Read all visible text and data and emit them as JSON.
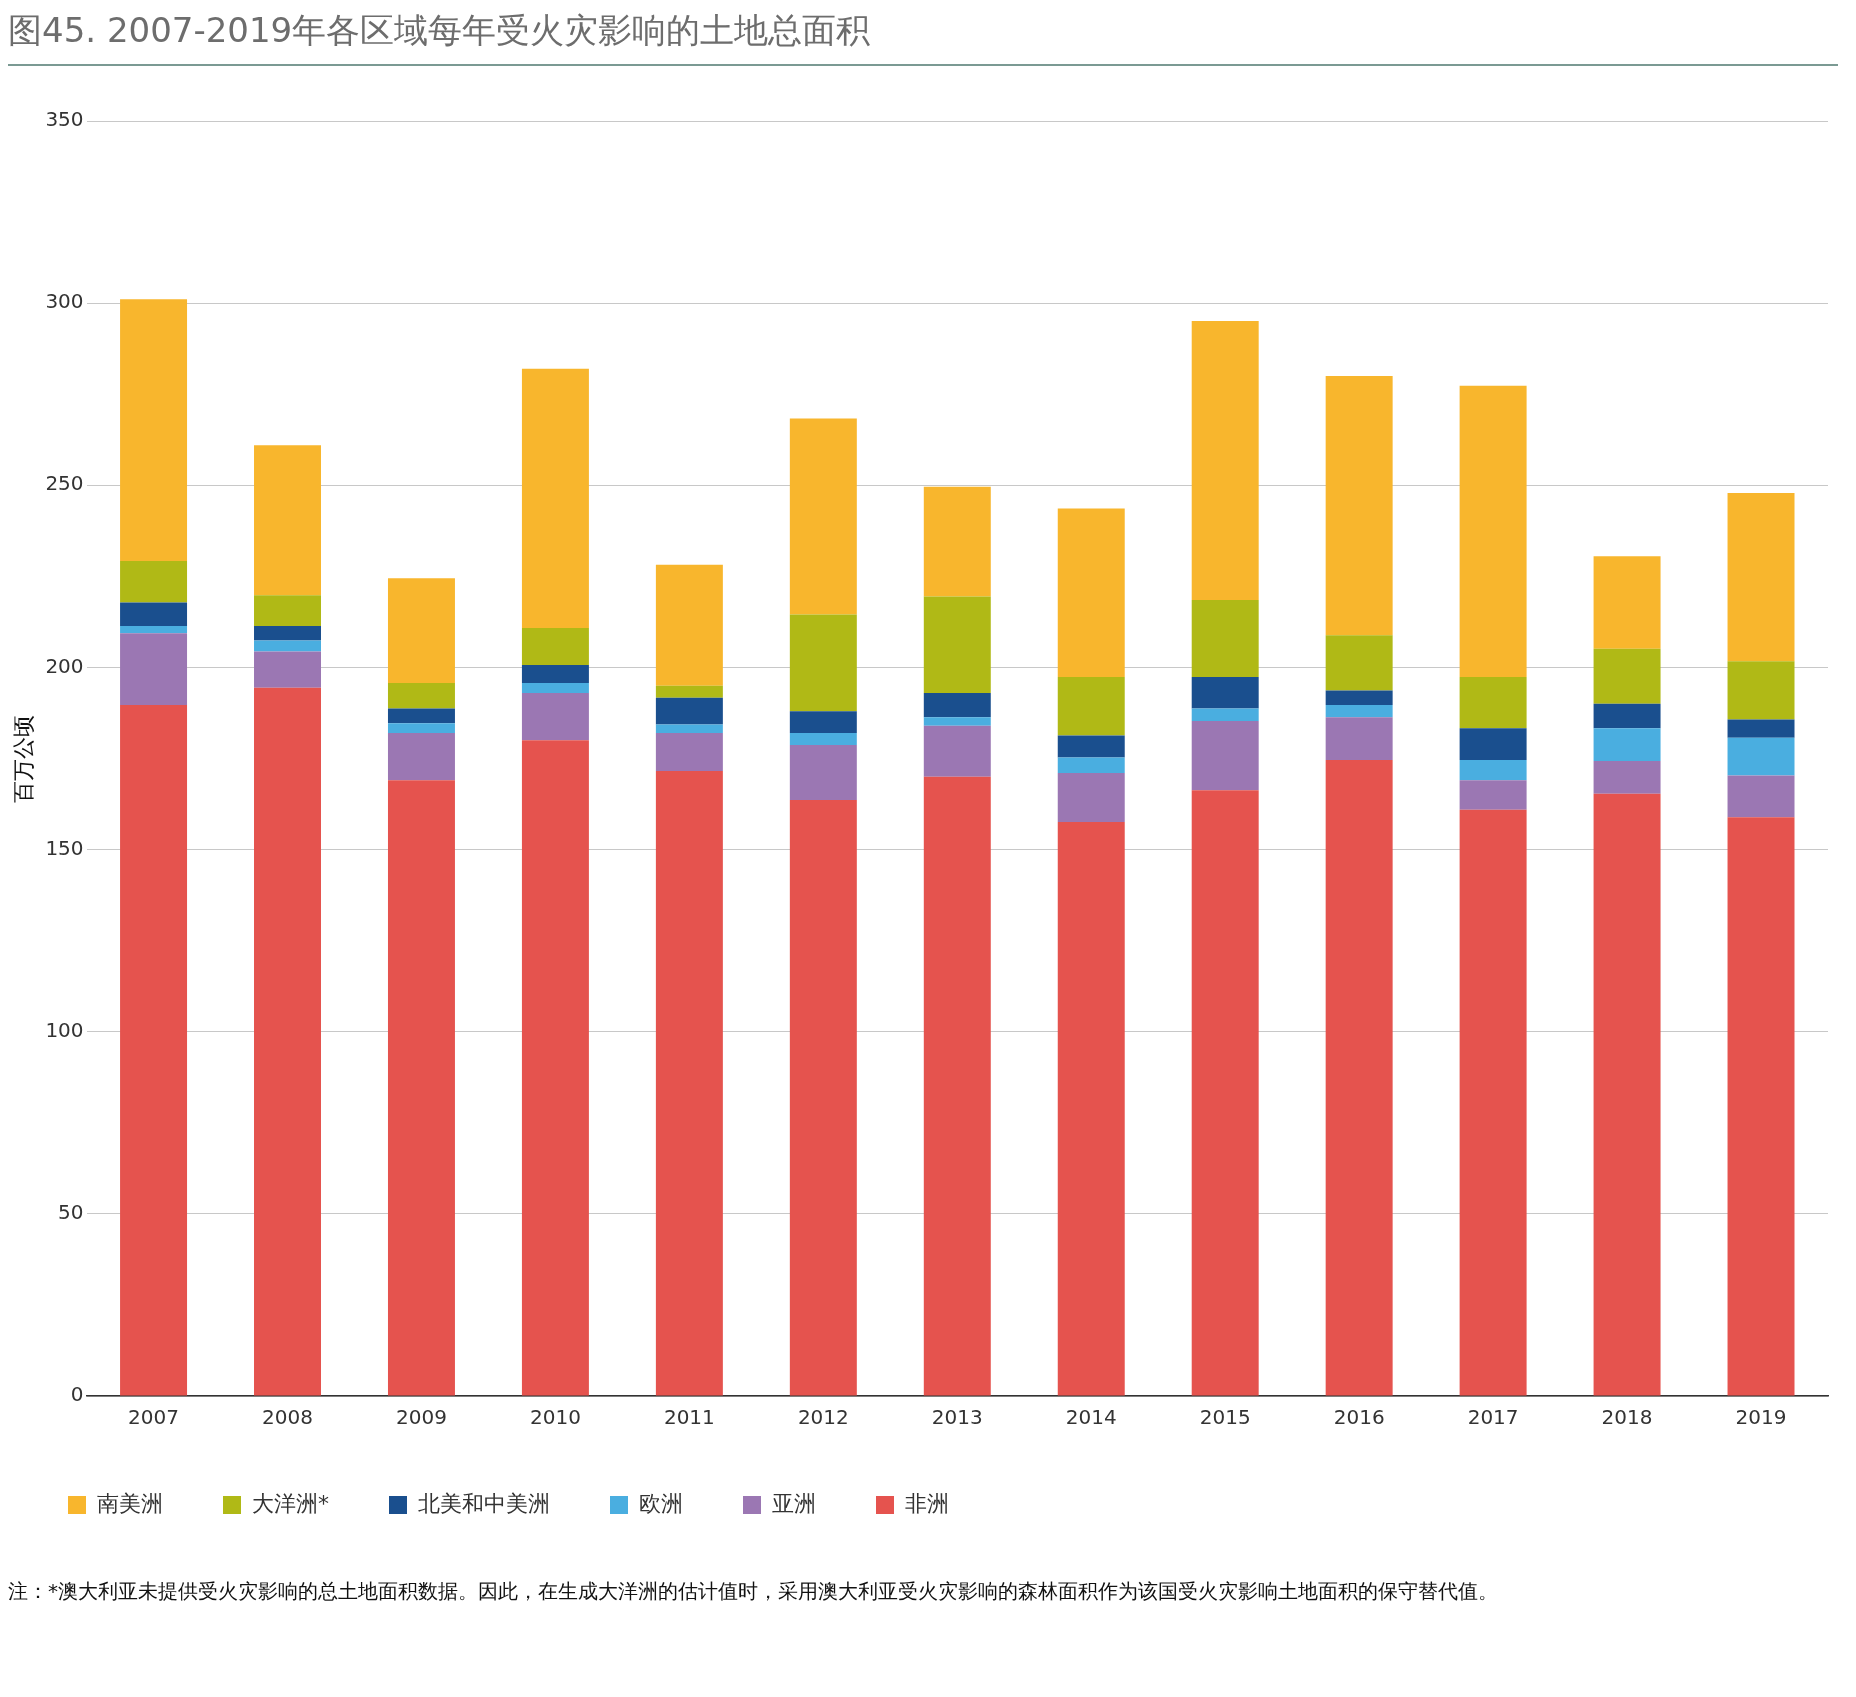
{
  "chart_data": {
    "type": "bar",
    "title": "图45. 2007-2019年各区域每年受火灾影响的土地总面积",
    "ylabel": "百万公顷",
    "categories": [
      "2007",
      "2008",
      "2009",
      "2010",
      "2011",
      "2012",
      "2013",
      "2014",
      "2015",
      "2016",
      "2017",
      "2018",
      "2019"
    ],
    "stacked": true,
    "ylim": [
      0,
      350
    ],
    "yticks": [
      0,
      50,
      100,
      150,
      200,
      250,
      300,
      350
    ],
    "grid": "y",
    "legend": "bottom",
    "series": [
      {
        "name": "非洲",
        "color": "#e5534e",
        "values": [
          189.7,
          194.4,
          169,
          180,
          171.6,
          163.6,
          170,
          157.6,
          166.3,
          174.6,
          160.9,
          165.3,
          158.9
        ]
      },
      {
        "name": "亚洲",
        "color": "#9b77b3",
        "values": [
          19.7,
          10,
          13,
          13,
          10.4,
          15.1,
          14,
          13.4,
          19,
          11.7,
          8.1,
          9,
          11.4
        ]
      },
      {
        "name": "欧洲",
        "color": "#4aaee0",
        "values": [
          2,
          3,
          2.7,
          2.7,
          2.3,
          3.3,
          2.3,
          4.3,
          3.4,
          3.4,
          5.6,
          9,
          10.4
        ]
      },
      {
        "name": "北美和中美洲",
        "color": "#1a4f8e",
        "values": [
          6.4,
          4,
          4,
          5,
          7.4,
          6,
          6.7,
          6,
          8.7,
          4,
          8.7,
          6.7,
          5
        ]
      },
      {
        "name": "大洋洲*",
        "color": "#b0b916",
        "values": [
          11.4,
          8.4,
          7,
          10.1,
          3.3,
          26.5,
          26.5,
          16.1,
          21.1,
          15.1,
          14.1,
          15.1,
          16
        ]
      },
      {
        "name": "南美洲",
        "color": "#f8b62d",
        "values": [
          71.9,
          41.2,
          28.8,
          71.2,
          33.2,
          53.8,
          30.1,
          46.2,
          76.6,
          71.2,
          79.9,
          25.4,
          46.2
        ]
      }
    ],
    "annotations": [
      "注：*澳大利亚未提供受火灾影响的总土地面积数据。因此，在生成大洋洲的估计值时，采用澳大利亚受火灾影响的森林面积作为该国受火灾影响土地面积的保守替代值。"
    ]
  }
}
